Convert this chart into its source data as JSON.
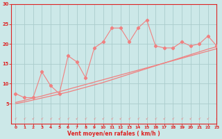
{
  "x": [
    0,
    1,
    2,
    3,
    4,
    5,
    6,
    7,
    8,
    9,
    10,
    11,
    12,
    13,
    14,
    15,
    16,
    17,
    18,
    19,
    20,
    21,
    22,
    23
  ],
  "rafales": [
    7.5,
    6.5,
    6.5,
    13.0,
    9.5,
    7.5,
    17.0,
    15.5,
    11.5,
    19.0,
    20.5,
    24.0,
    24.0,
    20.5,
    24.0,
    26.0,
    19.5,
    19.0,
    19.0,
    20.5,
    19.5,
    20.0,
    22.0,
    19.5
  ],
  "trend1": [
    5.0,
    5.4,
    5.9,
    6.4,
    6.9,
    7.4,
    7.9,
    8.5,
    9.1,
    9.7,
    10.3,
    11.0,
    11.7,
    12.4,
    13.1,
    13.8,
    14.5,
    15.2,
    15.9,
    16.6,
    17.3,
    18.0,
    18.7,
    19.3
  ],
  "trend2": [
    5.3,
    5.8,
    6.4,
    6.9,
    7.5,
    8.0,
    8.6,
    9.2,
    9.8,
    10.4,
    11.0,
    11.6,
    12.2,
    12.8,
    13.4,
    14.0,
    14.6,
    15.2,
    15.8,
    16.4,
    17.0,
    17.6,
    18.2,
    18.8
  ],
  "line_color": "#f08080",
  "bg_color": "#cce8e8",
  "grid_color": "#aacccc",
  "axis_color": "#dd2222",
  "xlabel": "Vent moyen/en rafales ( km/h )",
  "ylim": [
    0,
    30
  ],
  "xlim": [
    -0.5,
    23
  ],
  "yticks": [
    5,
    10,
    15,
    20,
    25,
    30
  ],
  "xticks": [
    0,
    1,
    2,
    3,
    4,
    5,
    6,
    7,
    8,
    9,
    10,
    11,
    12,
    13,
    14,
    15,
    16,
    17,
    18,
    19,
    20,
    21,
    22,
    23
  ]
}
